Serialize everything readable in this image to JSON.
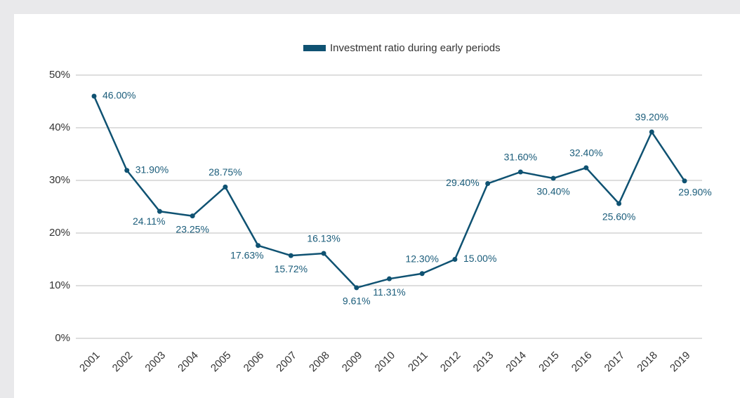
{
  "chart_data": {
    "type": "line",
    "categories": [
      "2001",
      "2002",
      "2003",
      "2004",
      "2005",
      "2006",
      "2007",
      "2008",
      "2009",
      "2010",
      "2011",
      "2012",
      "2013",
      "2014",
      "2015",
      "2016",
      "2017",
      "2018",
      "2019"
    ],
    "series": [
      {
        "name": "Investment ratio during early periods",
        "color": "#0f5272",
        "values": [
          46,
          31.9,
          24.11,
          23.25,
          28.75,
          17.63,
          15.72,
          16.13,
          9.61,
          11.31,
          12.3,
          15,
          29.4,
          31.6,
          30.4,
          32.4,
          25.6,
          39.2,
          29.9
        ],
        "value_labels": [
          "46.00%",
          "31.90%",
          "24.11%",
          "23.25%",
          "28.75%",
          "17.63%",
          "15.72%",
          "16.13%",
          "9.61%",
          "11.31%",
          "12.30%",
          "15.00%",
          "29.40%",
          "31.60%",
          "30.40%",
          "32.40%",
          "25.60%",
          "39.20%",
          "29.90%"
        ]
      }
    ],
    "ylim": [
      0,
      50
    ],
    "yticks": [
      {
        "value": 0,
        "label": "0%"
      },
      {
        "value": 10,
        "label": "10%"
      },
      {
        "value": 20,
        "label": "20%"
      },
      {
        "value": 30,
        "label": "30%"
      },
      {
        "value": 40,
        "label": "40%"
      },
      {
        "value": 50,
        "label": "50%"
      }
    ],
    "grid": true,
    "legend": "top"
  }
}
